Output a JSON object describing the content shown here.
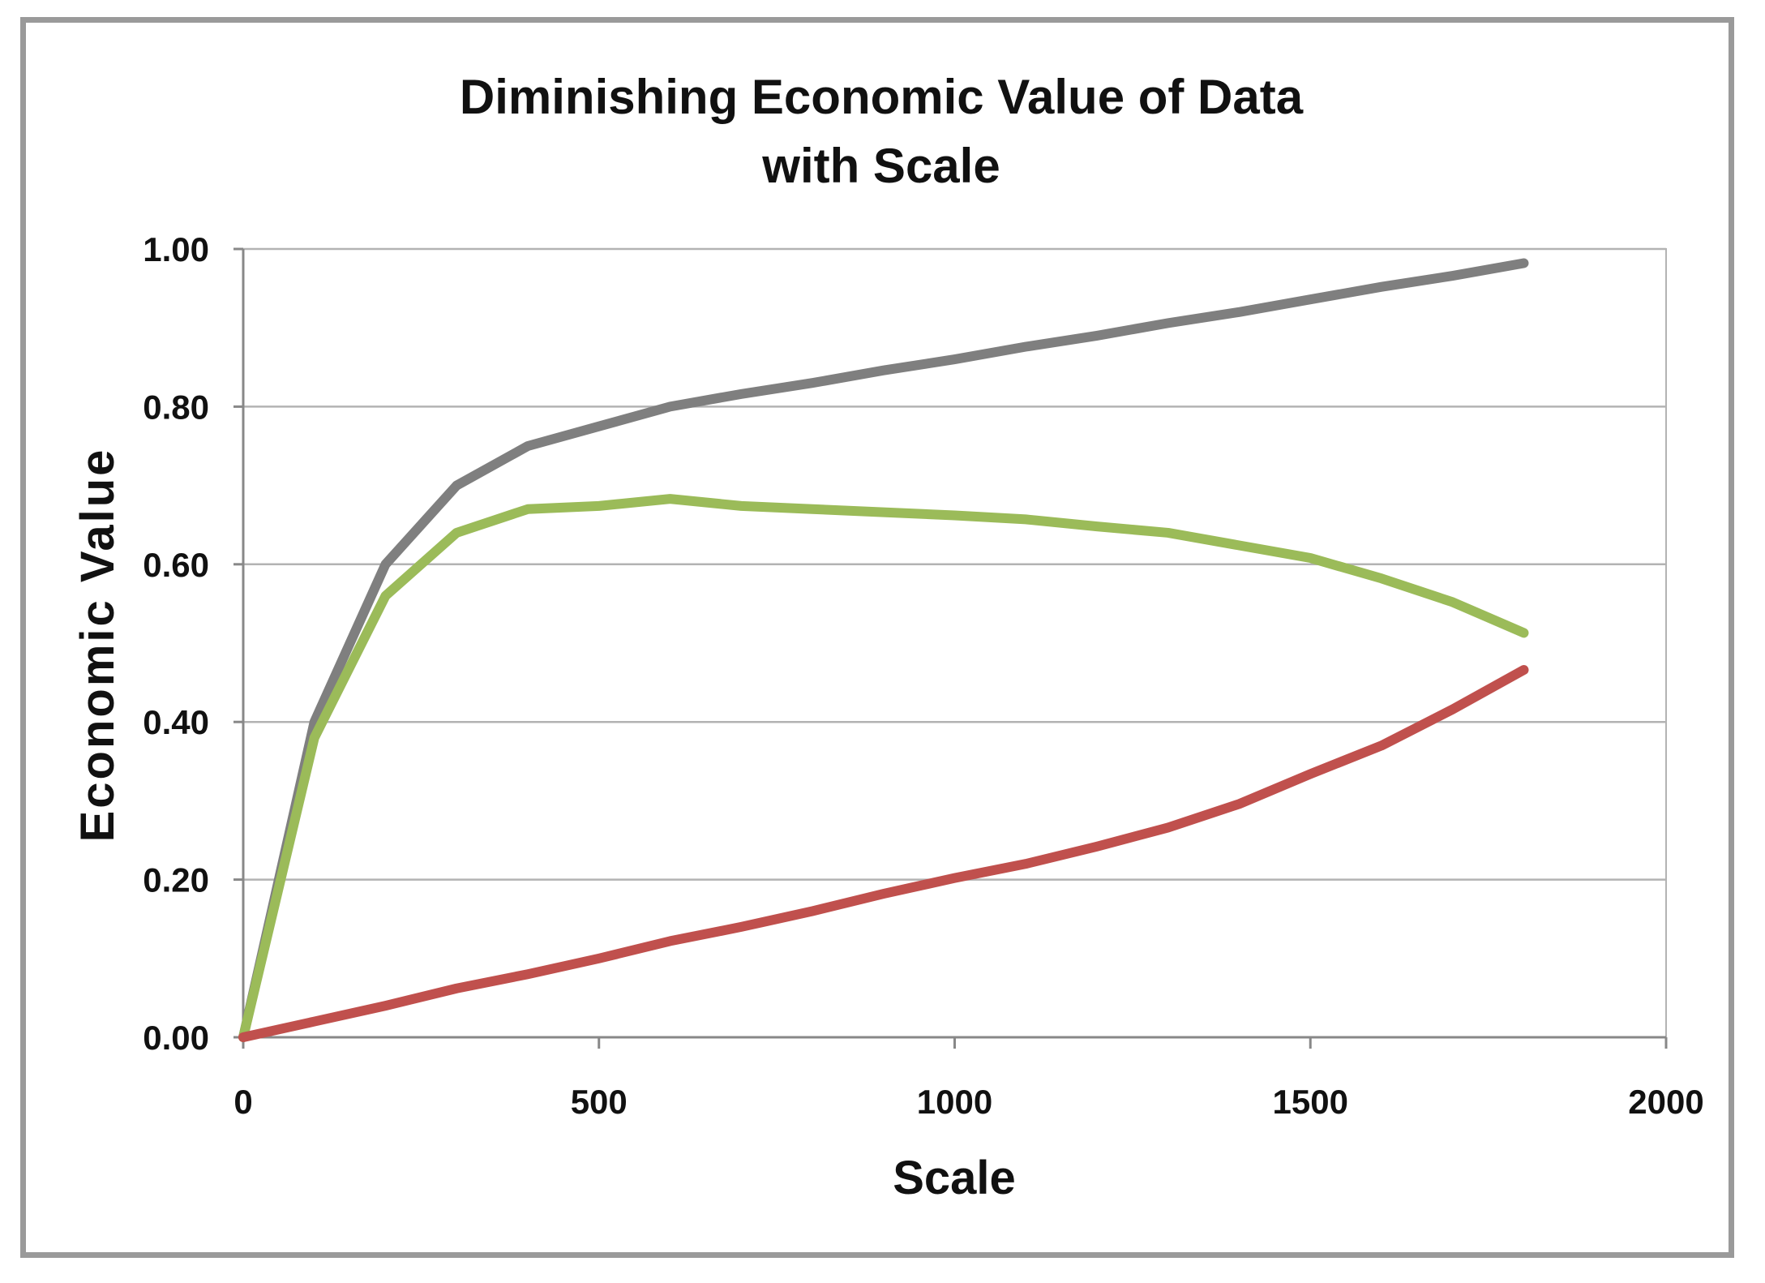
{
  "chart_data": {
    "type": "line",
    "title": [
      "Diminishing Economic Value of Data",
      "with Scale"
    ],
    "xlabel": "Scale",
    "ylabel": "Economic Value",
    "xlim": [
      0,
      2000
    ],
    "ylim": [
      0,
      1.0
    ],
    "xticks": [
      0,
      500,
      1000,
      1500,
      2000
    ],
    "xtick_labels": [
      "0",
      "500",
      "1000",
      "1500",
      "2000"
    ],
    "yticks": [
      0,
      0.2,
      0.4,
      0.6,
      0.8,
      1.0
    ],
    "ytick_labels": [
      "0.00",
      "0.20",
      "0.40",
      "0.60",
      "0.80",
      "1.00"
    ],
    "grid": true,
    "legend": "none",
    "x": [
      0,
      100,
      200,
      300,
      400,
      500,
      600,
      700,
      800,
      900,
      1000,
      1100,
      1200,
      1300,
      1400,
      1500,
      1600,
      1700,
      1800
    ],
    "series": [
      {
        "name": "gray",
        "color": "#7f7f7f",
        "values": [
          0.0,
          0.4,
          0.6,
          0.7,
          0.75,
          0.775,
          0.8,
          0.816,
          0.83,
          0.846,
          0.86,
          0.876,
          0.89,
          0.906,
          0.92,
          0.936,
          0.952,
          0.966,
          0.982
        ]
      },
      {
        "name": "green",
        "color": "#9bbb59",
        "values": [
          0.0,
          0.38,
          0.56,
          0.64,
          0.67,
          0.674,
          0.683,
          0.674,
          0.67,
          0.666,
          0.662,
          0.657,
          0.648,
          0.64,
          0.624,
          0.608,
          0.582,
          0.552,
          0.513
        ]
      },
      {
        "name": "red",
        "color": "#c0504d",
        "values": [
          0.0,
          0.02,
          0.04,
          0.062,
          0.08,
          0.1,
          0.122,
          0.14,
          0.16,
          0.182,
          0.202,
          0.22,
          0.242,
          0.266,
          0.296,
          0.334,
          0.37,
          0.416,
          0.466
        ]
      }
    ]
  }
}
